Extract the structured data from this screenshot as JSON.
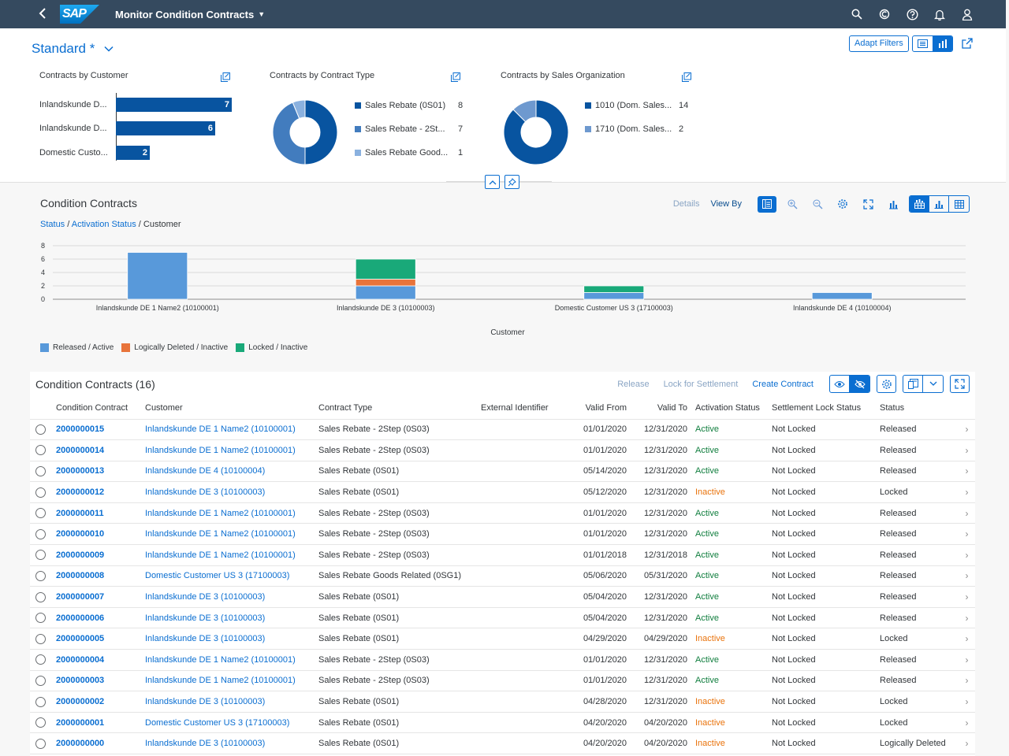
{
  "shell": {
    "title": "Monitor Condition Contracts",
    "logo_text": "SAP"
  },
  "header": {
    "variant": "Standard *",
    "adapt_filters": "Adapt Filters"
  },
  "cards": {
    "customer": {
      "title": "Contracts by Customer",
      "items": [
        {
          "label": "Inlandskunde D...",
          "value": "7"
        },
        {
          "label": "Inlandskunde D...",
          "value": "6"
        },
        {
          "label": "Domestic Custo...",
          "value": "2"
        }
      ]
    },
    "contract_type": {
      "title": "Contracts by Contract Type",
      "items": [
        {
          "label": "Sales Rebate (0S01)",
          "value": "8",
          "color": "#0854a0"
        },
        {
          "label": "Sales Rebate - 2St...",
          "value": "7",
          "color": "#427cbe"
        },
        {
          "label": "Sales Rebate Good...",
          "value": "1",
          "color": "#8ab1df"
        }
      ]
    },
    "sales_org": {
      "title": "Contracts by Sales Organization",
      "items": [
        {
          "label": "1010 (Dom. Sales...",
          "value": "14",
          "color": "#0854a0"
        },
        {
          "label": "1710 (Dom. Sales...",
          "value": "2",
          "color": "#6e99cf"
        }
      ]
    }
  },
  "chart_panel": {
    "title": "Condition Contracts",
    "details": "Details",
    "view_by": "View By",
    "breadcrumb": {
      "status": "Status",
      "activation": "Activation Status",
      "customer": "Customer"
    }
  },
  "chart_data": {
    "type": "bar",
    "stacked": true,
    "categories": [
      "Inlandskunde DE 1 Name2 (10100001)",
      "Inlandskunde DE 3 (10100003)",
      "Domestic Customer US 3 (17100003)",
      "Inlandskunde DE 4 (10100004)"
    ],
    "series": [
      {
        "name": "Released / Active",
        "color": "#5899da",
        "values": [
          7,
          2,
          1,
          1
        ]
      },
      {
        "name": "Logically Deleted / Inactive",
        "color": "#e8743b",
        "values": [
          0,
          1,
          0,
          0
        ]
      },
      {
        "name": "Locked / Inactive",
        "color": "#19a979",
        "values": [
          0,
          3,
          1,
          0
        ]
      }
    ],
    "xlabel": "Customer",
    "ylim": [
      0,
      8
    ],
    "yticks": [
      0,
      2,
      4,
      6,
      8
    ],
    "grid": true,
    "legend": "bottom-left"
  },
  "table": {
    "title": "Condition Contracts (16)",
    "release": "Release",
    "lock": "Lock for Settlement",
    "create": "Create Contract",
    "columns": [
      "Condition Contract",
      "Customer",
      "Contract Type",
      "External Identifier",
      "Valid From",
      "Valid To",
      "Activation Status",
      "Settlement Lock Status",
      "Status"
    ],
    "rows": [
      {
        "id": "2000000015",
        "customer": "Inlandskunde DE 1 Name2 (10100001)",
        "type": "Sales Rebate - 2Step (0S03)",
        "ext": "",
        "from": "01/01/2020",
        "to": "12/31/2020",
        "activation": "Active",
        "lock": "Not Locked",
        "status": "Released"
      },
      {
        "id": "2000000014",
        "customer": "Inlandskunde DE 1 Name2 (10100001)",
        "type": "Sales Rebate - 2Step (0S03)",
        "ext": "",
        "from": "01/01/2020",
        "to": "12/31/2020",
        "activation": "Active",
        "lock": "Not Locked",
        "status": "Released"
      },
      {
        "id": "2000000013",
        "customer": "Inlandskunde DE 4 (10100004)",
        "type": "Sales Rebate (0S01)",
        "ext": "",
        "from": "05/14/2020",
        "to": "12/31/2020",
        "activation": "Active",
        "lock": "Not Locked",
        "status": "Released"
      },
      {
        "id": "2000000012",
        "customer": "Inlandskunde DE 3 (10100003)",
        "type": "Sales Rebate (0S01)",
        "ext": "",
        "from": "05/12/2020",
        "to": "12/31/2020",
        "activation": "Inactive",
        "lock": "Not Locked",
        "status": "Locked"
      },
      {
        "id": "2000000011",
        "customer": "Inlandskunde DE 1 Name2 (10100001)",
        "type": "Sales Rebate - 2Step (0S03)",
        "ext": "",
        "from": "01/01/2020",
        "to": "12/31/2020",
        "activation": "Active",
        "lock": "Not Locked",
        "status": "Released"
      },
      {
        "id": "2000000010",
        "customer": "Inlandskunde DE 1 Name2 (10100001)",
        "type": "Sales Rebate - 2Step (0S03)",
        "ext": "",
        "from": "01/01/2020",
        "to": "12/31/2020",
        "activation": "Active",
        "lock": "Not Locked",
        "status": "Released"
      },
      {
        "id": "2000000009",
        "customer": "Inlandskunde DE 1 Name2 (10100001)",
        "type": "Sales Rebate - 2Step (0S03)",
        "ext": "",
        "from": "01/01/2018",
        "to": "12/31/2018",
        "activation": "Active",
        "lock": "Not Locked",
        "status": "Released"
      },
      {
        "id": "2000000008",
        "customer": "Domestic Customer US 3 (17100003)",
        "type": "Sales Rebate Goods Related (0SG1)",
        "ext": "",
        "from": "05/06/2020",
        "to": "05/31/2020",
        "activation": "Active",
        "lock": "Not Locked",
        "status": "Released"
      },
      {
        "id": "2000000007",
        "customer": "Inlandskunde DE 3 (10100003)",
        "type": "Sales Rebate (0S01)",
        "ext": "",
        "from": "05/04/2020",
        "to": "12/31/2020",
        "activation": "Active",
        "lock": "Not Locked",
        "status": "Released"
      },
      {
        "id": "2000000006",
        "customer": "Inlandskunde DE 3 (10100003)",
        "type": "Sales Rebate (0S01)",
        "ext": "",
        "from": "05/04/2020",
        "to": "12/31/2020",
        "activation": "Active",
        "lock": "Not Locked",
        "status": "Released"
      },
      {
        "id": "2000000005",
        "customer": "Inlandskunde DE 3 (10100003)",
        "type": "Sales Rebate (0S01)",
        "ext": "",
        "from": "04/29/2020",
        "to": "04/29/2020",
        "activation": "Inactive",
        "lock": "Not Locked",
        "status": "Locked"
      },
      {
        "id": "2000000004",
        "customer": "Inlandskunde DE 1 Name2 (10100001)",
        "type": "Sales Rebate - 2Step (0S03)",
        "ext": "",
        "from": "01/01/2020",
        "to": "12/31/2020",
        "activation": "Active",
        "lock": "Not Locked",
        "status": "Released"
      },
      {
        "id": "2000000003",
        "customer": "Inlandskunde DE 1 Name2 (10100001)",
        "type": "Sales Rebate - 2Step (0S03)",
        "ext": "",
        "from": "01/01/2020",
        "to": "12/31/2020",
        "activation": "Active",
        "lock": "Not Locked",
        "status": "Released"
      },
      {
        "id": "2000000002",
        "customer": "Inlandskunde DE 3 (10100003)",
        "type": "Sales Rebate (0S01)",
        "ext": "",
        "from": "04/28/2020",
        "to": "12/31/2020",
        "activation": "Inactive",
        "lock": "Not Locked",
        "status": "Locked"
      },
      {
        "id": "2000000001",
        "customer": "Domestic Customer US 3 (17100003)",
        "type": "Sales Rebate (0S01)",
        "ext": "",
        "from": "04/20/2020",
        "to": "04/20/2020",
        "activation": "Inactive",
        "lock": "Not Locked",
        "status": "Locked"
      },
      {
        "id": "2000000000",
        "customer": "Inlandskunde DE 3 (10100003)",
        "type": "Sales Rebate (0S01)",
        "ext": "",
        "from": "04/20/2020",
        "to": "04/20/2020",
        "activation": "Inactive",
        "lock": "Not Locked",
        "status": "Logically Deleted"
      }
    ]
  }
}
